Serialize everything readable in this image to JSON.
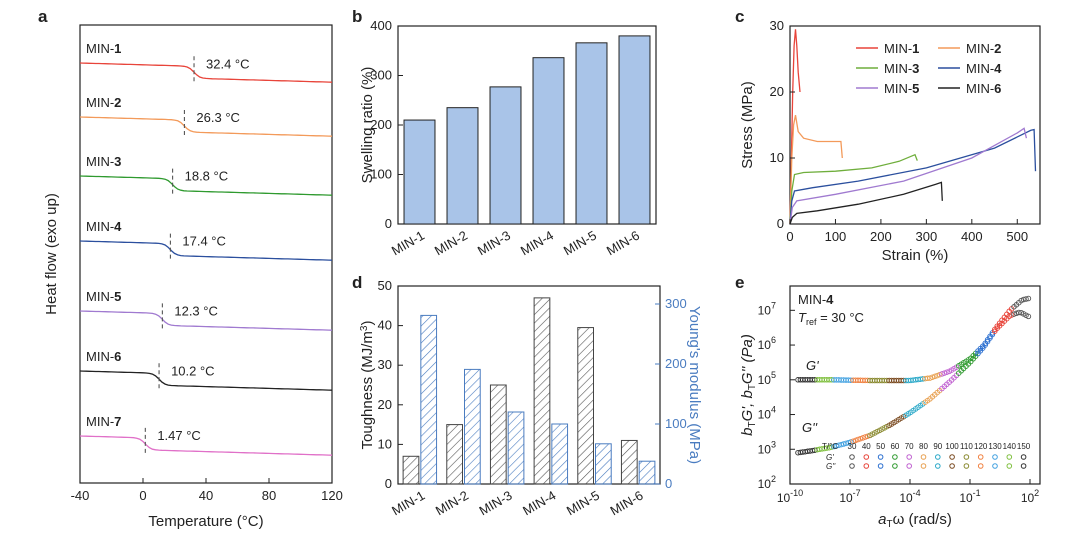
{
  "chart_data": [
    {
      "panel": "a",
      "type": "line",
      "xlabel": "Temperature (°C)",
      "ylabel": "Heat flow (exo up)",
      "xlim": [
        -40,
        120
      ],
      "xticks": [
        "-40",
        "0",
        "40",
        "80",
        "120"
      ],
      "series": [
        {
          "name": "MIN-1",
          "prefix": "MIN-",
          "num": "1",
          "tg": 32.4,
          "tg_label": "32.4 °C",
          "color": "#e8443a"
        },
        {
          "name": "MIN-2",
          "prefix": "MIN-",
          "num": "2",
          "tg": 26.3,
          "tg_label": "26.3 °C",
          "color": "#f39a5a"
        },
        {
          "name": "MIN-3",
          "prefix": "MIN-",
          "num": "3",
          "tg": 18.8,
          "tg_label": "18.8 °C",
          "color": "#2f9a2f"
        },
        {
          "name": "MIN-4",
          "prefix": "MIN-",
          "num": "4",
          "tg": 17.4,
          "tg_label": "17.4 °C",
          "color": "#2b4f9e"
        },
        {
          "name": "MIN-5",
          "prefix": "MIN-",
          "num": "5",
          "tg": 12.3,
          "tg_label": "12.3 °C",
          "color": "#a07ad0"
        },
        {
          "name": "MIN-6",
          "prefix": "MIN-",
          "num": "6",
          "tg": 10.2,
          "tg_label": "10.2 °C",
          "color": "#222222"
        },
        {
          "name": "MIN-7",
          "prefix": "MIN-",
          "num": "7",
          "tg": 1.47,
          "tg_label": "1.47 °C",
          "color": "#e070c8"
        }
      ]
    },
    {
      "panel": "b",
      "type": "bar",
      "categories": [
        "MIN-1",
        "MIN-2",
        "MIN-3",
        "MIN-4",
        "MIN-5",
        "MIN-6"
      ],
      "values": [
        210,
        235,
        277,
        336,
        366,
        380
      ],
      "ylabel": "Swelling ratio (%)",
      "ylim": [
        0,
        400
      ],
      "yticks": [
        "0",
        "100",
        "200",
        "300",
        "400"
      ],
      "color": "#a9c4e8"
    },
    {
      "panel": "c",
      "type": "line",
      "xlabel": "Strain (%)",
      "ylabel": "Stress (MPa)",
      "xlim": [
        0,
        550
      ],
      "ylim": [
        0,
        30
      ],
      "xticks": [
        "0",
        "100",
        "200",
        "300",
        "400",
        "500"
      ],
      "yticks": [
        "0",
        "10",
        "20",
        "30"
      ],
      "legend": "top-right",
      "series": [
        {
          "name": "MIN-1",
          "prefix": "MIN-",
          "num": "1",
          "color": "#e8443a",
          "points": [
            [
              0,
              0
            ],
            [
              3,
              10
            ],
            [
              6,
              20
            ],
            [
              9,
              27
            ],
            [
              12,
              29.5
            ],
            [
              15,
              27
            ],
            [
              18,
              23
            ],
            [
              22,
              20
            ]
          ]
        },
        {
          "name": "MIN-2",
          "prefix": "MIN-",
          "num": "2",
          "color": "#f39a5a",
          "points": [
            [
              0,
              0
            ],
            [
              4,
              10
            ],
            [
              8,
              15
            ],
            [
              12,
              16.5
            ],
            [
              18,
              14
            ],
            [
              30,
              13
            ],
            [
              60,
              12.5
            ],
            [
              100,
              12.5
            ],
            [
              112,
              12.5
            ],
            [
              115,
              10
            ]
          ]
        },
        {
          "name": "MIN-3",
          "prefix": "MIN-",
          "num": "3",
          "color": "#6fae3c",
          "points": [
            [
              0,
              0
            ],
            [
              4,
              5
            ],
            [
              10,
              7.5
            ],
            [
              30,
              7.8
            ],
            [
              100,
              8
            ],
            [
              180,
              8.5
            ],
            [
              240,
              9.5
            ],
            [
              275,
              10.5
            ],
            [
              280,
              9.6
            ]
          ]
        },
        {
          "name": "MIN-4",
          "prefix": "MIN-",
          "num": "4",
          "color": "#2b4f9e",
          "points": [
            [
              0,
              0
            ],
            [
              4,
              3.5
            ],
            [
              10,
              5
            ],
            [
              50,
              5.5
            ],
            [
              150,
              6.5
            ],
            [
              300,
              8.5
            ],
            [
              450,
              11.5
            ],
            [
              530,
              14.2
            ],
            [
              537,
              14.3
            ],
            [
              540,
              8
            ]
          ]
        },
        {
          "name": "MIN-5",
          "prefix": "MIN-",
          "num": "5",
          "color": "#a07ad0",
          "points": [
            [
              0,
              0
            ],
            [
              5,
              2.5
            ],
            [
              15,
              3.5
            ],
            [
              100,
              4.5
            ],
            [
              250,
              6.5
            ],
            [
              400,
              10
            ],
            [
              500,
              13.8
            ],
            [
              515,
              14.5
            ],
            [
              520,
              13
            ]
          ]
        },
        {
          "name": "MIN-6",
          "prefix": "MIN-",
          "num": "6",
          "color": "#222222",
          "points": [
            [
              0,
              0
            ],
            [
              5,
              1
            ],
            [
              15,
              1.6
            ],
            [
              60,
              2
            ],
            [
              150,
              3
            ],
            [
              250,
              4.5
            ],
            [
              320,
              6
            ],
            [
              333,
              6.3
            ],
            [
              335,
              3.5
            ]
          ]
        }
      ]
    },
    {
      "panel": "d",
      "type": "bar",
      "categories": [
        "MIN-1",
        "MIN-2",
        "MIN-3",
        "MIN-4",
        "MIN-5",
        "MIN-6"
      ],
      "series": [
        {
          "name": "Toughness",
          "axis": "left",
          "values": [
            7,
            15,
            25,
            47,
            39.5,
            11
          ]
        },
        {
          "name": "Young's modulus",
          "axis": "right",
          "values": [
            281,
            191,
            120,
            100,
            67,
            38
          ]
        }
      ],
      "ylabel": "Toughness (MJ/m",
      "ylabel_sup": "3",
      "ylabel_end": ")",
      "y2label": "Young's modulus (MPa)",
      "ylim": [
        0,
        50
      ],
      "y2lim": [
        0,
        330
      ],
      "yticks": [
        "0",
        "10",
        "20",
        "30",
        "40",
        "50"
      ],
      "y2ticks": [
        "0",
        "100",
        "200",
        "300"
      ],
      "color_left": "#555555",
      "color_right": "#4a7cc0"
    },
    {
      "panel": "e",
      "type": "scatter",
      "title_prefix": "MIN-",
      "title_num": "4",
      "tref_label": "T",
      "tref_sub": "ref",
      "tref_value": " = 30 °C",
      "xlabel_a": "a",
      "xlabel_sub": "T",
      "xlabel_rest": "ω (rad/s)",
      "ylabel": "bTG', bTG'' (Pa)",
      "ylabel_parts": [
        "b",
        "T",
        "G', b",
        "T",
        "G'' (Pa)"
      ],
      "xlim_log": [
        -10,
        2.5
      ],
      "ylim_log": [
        2,
        7.7
      ],
      "xticks": [
        "-10",
        "-7",
        "-4",
        "-1",
        "2"
      ],
      "yticks": [
        "2",
        "3",
        "4",
        "5",
        "6",
        "7"
      ],
      "gprime_label": "G'",
      "gdouble_label": "G''",
      "temp_header": "T/°C",
      "temperatures": [
        "30",
        "40",
        "50",
        "60",
        "70",
        "80",
        "90",
        "100",
        "110",
        "120",
        "130",
        "140",
        "150"
      ],
      "row_labels": [
        "G'",
        "G''"
      ],
      "gprime_curve": [
        [
          -9.6,
          5.0
        ],
        [
          -8,
          5.0
        ],
        [
          -6,
          4.98
        ],
        [
          -4,
          4.98
        ],
        [
          -3,
          5.05
        ],
        [
          -2,
          5.25
        ],
        [
          -1,
          5.6
        ],
        [
          -0.3,
          6.0
        ],
        [
          0.3,
          6.5
        ],
        [
          1,
          7.0
        ],
        [
          1.6,
          7.3
        ],
        [
          2,
          7.35
        ]
      ],
      "gdouble_curve": [
        [
          -9.6,
          2.9
        ],
        [
          -9,
          2.95
        ],
        [
          -8,
          3.05
        ],
        [
          -7,
          3.2
        ],
        [
          -6,
          3.4
        ],
        [
          -5,
          3.7
        ],
        [
          -4,
          4.05
        ],
        [
          -3,
          4.45
        ],
        [
          -2,
          4.95
        ],
        [
          -1,
          5.5
        ],
        [
          -0.3,
          5.95
        ],
        [
          0.3,
          6.45
        ],
        [
          1,
          6.85
        ],
        [
          1.5,
          6.95
        ],
        [
          2,
          6.8
        ]
      ],
      "marker_colors": [
        "#555555",
        "#e8443a",
        "#2b6fd0",
        "#2f9a2f",
        "#c060d0",
        "#e8a050",
        "#2aa8c8",
        "#7a4a20",
        "#8a8a30",
        "#f08040",
        "#40a0e0",
        "#80c040",
        "#333333"
      ]
    }
  ],
  "panel_letters": [
    "a",
    "b",
    "c",
    "d",
    "e"
  ]
}
